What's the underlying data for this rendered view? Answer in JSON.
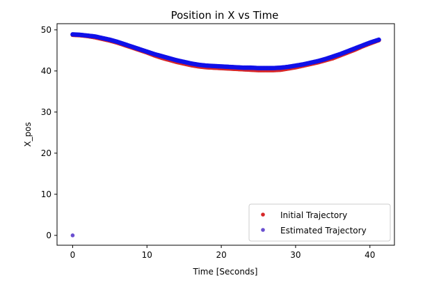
{
  "chart_data": {
    "type": "scatter",
    "title": "Position in X vs Time",
    "xlabel": "Time [Seconds]",
    "ylabel": "X_pos",
    "xlim": [
      -2.1,
      43.3
    ],
    "ylim": [
      -2.4,
      51.5
    ],
    "xticks": [
      "0",
      "10",
      "20",
      "30",
      "40"
    ],
    "yticks": [
      "0",
      "10",
      "20",
      "30",
      "40",
      "50"
    ],
    "grid": false,
    "legend_position": "lower-right",
    "series": [
      {
        "name": "Initial Trajectory",
        "color": "#d62728",
        "marker": "dot",
        "x": [
          0,
          1,
          2,
          3,
          4,
          5,
          6,
          7,
          8,
          9,
          10,
          11,
          12,
          13,
          14,
          15,
          16,
          17,
          18,
          19,
          20,
          21,
          22,
          23,
          24,
          25,
          26,
          27,
          28,
          29,
          30,
          31,
          32,
          33,
          34,
          35,
          36,
          37,
          38,
          39,
          40,
          41.2
        ],
        "y": [
          48.8,
          48.7,
          48.5,
          48.2,
          47.8,
          47.4,
          46.9,
          46.3,
          45.7,
          45.1,
          44.5,
          43.8,
          43.2,
          42.7,
          42.2,
          41.8,
          41.4,
          41.1,
          40.9,
          40.8,
          40.7,
          40.6,
          40.5,
          40.4,
          40.3,
          40.2,
          40.2,
          40.2,
          40.3,
          40.6,
          40.9,
          41.3,
          41.7,
          42.1,
          42.6,
          43.1,
          43.8,
          44.5,
          45.2,
          46.0,
          46.7,
          47.5
        ]
      },
      {
        "name": "Estimated Trajectory",
        "color": "#1010e8",
        "marker": "dot",
        "x": [
          0,
          0,
          1,
          2,
          3,
          4,
          5,
          6,
          7,
          8,
          9,
          10,
          11,
          12,
          13,
          14,
          15,
          16,
          17,
          18,
          19,
          20,
          21,
          22,
          23,
          24,
          25,
          26,
          27,
          28,
          29,
          30,
          31,
          32,
          33,
          34,
          35,
          36,
          37,
          38,
          39,
          40,
          41.2
        ],
        "y": [
          0,
          48.9,
          48.8,
          48.6,
          48.4,
          48.0,
          47.6,
          47.1,
          46.5,
          45.9,
          45.3,
          44.7,
          44.1,
          43.6,
          43.1,
          42.6,
          42.2,
          41.8,
          41.5,
          41.3,
          41.2,
          41.1,
          41.0,
          40.9,
          40.8,
          40.8,
          40.7,
          40.7,
          40.7,
          40.8,
          41.0,
          41.3,
          41.6,
          42.0,
          42.4,
          42.9,
          43.5,
          44.1,
          44.8,
          45.5,
          46.2,
          46.9,
          47.6
        ]
      }
    ]
  }
}
